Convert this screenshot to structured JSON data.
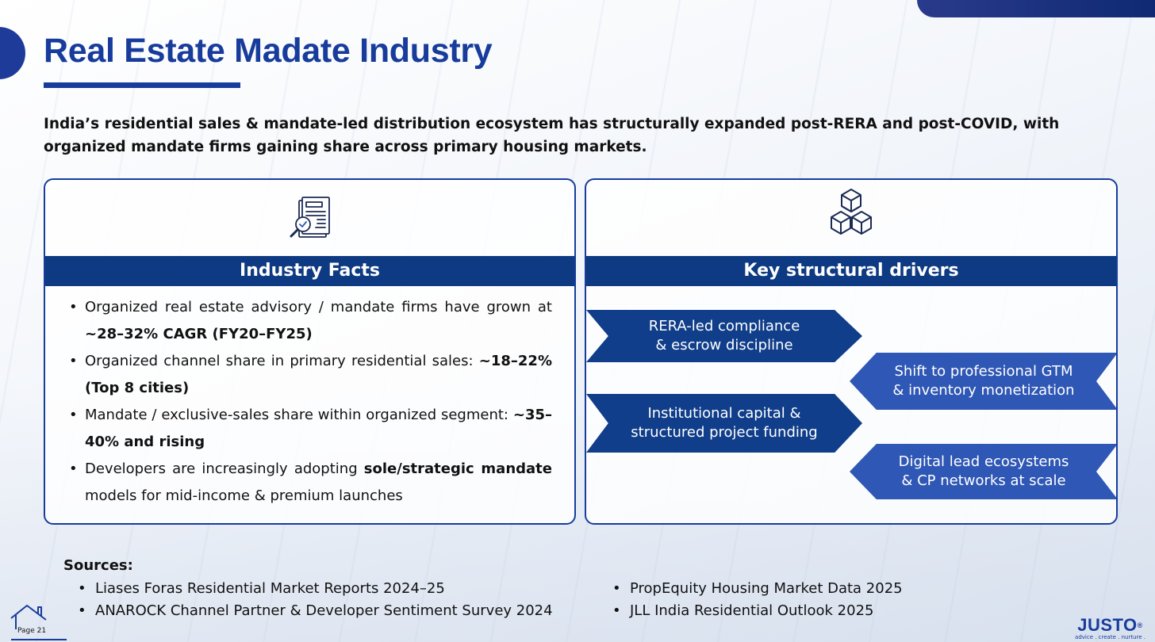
{
  "page": {
    "title": "Real Estate Madate Industry",
    "subtitle": "India’s residential sales & mandate-led distribution ecosystem has structurally expanded post-RERA and post-COVID, with organized mandate firms gaining share across primary housing markets.",
    "page_number": "Page 21"
  },
  "industry_facts": {
    "icon": "document-magnifier-icon",
    "header": "Industry Facts",
    "items": [
      {
        "text": "Organized real estate advisory / mandate firms have grown at ",
        "bold": "~28–32% CAGR (FY20–FY25)",
        "after": ""
      },
      {
        "text": "Organized channel share in primary residential sales: ",
        "bold": "~18–22% (Top 8 cities)",
        "after": ""
      },
      {
        "text": "Mandate / exclusive-sales share within organized segment: ",
        "bold": "~35–40% and rising",
        "after": ""
      },
      {
        "text": "Developers are increasingly adopting ",
        "bold": "sole/strategic mandate",
        "after": " models for mid-income & premium launches"
      }
    ]
  },
  "structural_drivers": {
    "icon": "cubes-icon",
    "header": "Key structural drivers",
    "items": [
      {
        "line1": "RERA-led compliance",
        "line2": "& escrow discipline"
      },
      {
        "line1": "Shift to professional GTM",
        "line2": "& inventory monetization"
      },
      {
        "line1": "Institutional capital &",
        "line2": "structured project funding"
      },
      {
        "line1": "Digital lead ecosystems",
        "line2": "& CP networks at scale"
      }
    ]
  },
  "sources": {
    "title": "Sources:",
    "left": [
      "Liases Foras Residential Market Reports 2024–25",
      "ANAROCK Channel Partner & Developer Sentiment Survey 2024"
    ],
    "right": [
      "PropEquity Housing Market Data 2025",
      "JLL India Residential Outlook 2025"
    ]
  },
  "brand": {
    "name": "JUSTO",
    "trademark": "®",
    "tagline": "advice . create . nurture ."
  },
  "colors": {
    "title_blue": "#173c9c",
    "header_navy": "#0d3a82",
    "chevron_dark": "#103e8a",
    "chevron_light": "#2f57b5"
  }
}
